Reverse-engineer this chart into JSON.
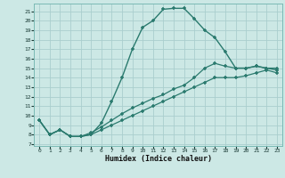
{
  "xlabel": "Humidex (Indice chaleur)",
  "bg_color": "#cce8e5",
  "grid_color": "#aacece",
  "line_color": "#2a7a6e",
  "xlim": [
    -0.5,
    23.5
  ],
  "ylim": [
    6.8,
    21.8
  ],
  "xticks": [
    0,
    1,
    2,
    3,
    4,
    5,
    6,
    7,
    8,
    9,
    10,
    11,
    12,
    13,
    14,
    15,
    16,
    17,
    18,
    19,
    20,
    21,
    22,
    23
  ],
  "yticks": [
    7,
    8,
    9,
    10,
    11,
    12,
    13,
    14,
    15,
    16,
    17,
    18,
    19,
    20,
    21
  ],
  "line1_x": [
    0,
    1,
    2,
    3,
    4,
    5,
    6,
    7,
    8,
    9,
    10,
    11,
    12,
    13,
    14,
    15,
    16,
    17,
    18,
    19,
    20,
    21,
    22,
    23
  ],
  "line1_y": [
    9.5,
    8.0,
    8.5,
    7.8,
    7.8,
    8.0,
    9.2,
    11.5,
    14.0,
    17.0,
    19.3,
    20.0,
    21.2,
    21.3,
    21.3,
    20.2,
    19.0,
    18.2,
    16.7,
    15.0,
    15.0,
    15.2,
    15.0,
    14.8
  ],
  "line2_x": [
    0,
    1,
    2,
    3,
    4,
    5,
    6,
    7,
    8,
    9,
    10,
    11,
    12,
    13,
    14,
    15,
    16,
    17,
    18,
    19,
    20,
    21,
    22,
    23
  ],
  "line2_y": [
    9.5,
    8.0,
    8.5,
    7.8,
    7.8,
    8.2,
    8.8,
    9.5,
    10.2,
    10.8,
    11.3,
    11.8,
    12.2,
    12.8,
    13.2,
    14.0,
    15.0,
    15.5,
    15.2,
    15.0,
    15.0,
    15.2,
    15.0,
    15.0
  ],
  "line3_x": [
    0,
    1,
    2,
    3,
    4,
    5,
    6,
    7,
    8,
    9,
    10,
    11,
    12,
    13,
    14,
    15,
    16,
    17,
    18,
    19,
    20,
    21,
    22,
    23
  ],
  "line3_y": [
    9.5,
    8.0,
    8.5,
    7.8,
    7.8,
    8.0,
    8.5,
    9.0,
    9.5,
    10.0,
    10.5,
    11.0,
    11.5,
    12.0,
    12.5,
    13.0,
    13.5,
    14.0,
    14.0,
    14.0,
    14.2,
    14.5,
    14.8,
    14.5
  ]
}
